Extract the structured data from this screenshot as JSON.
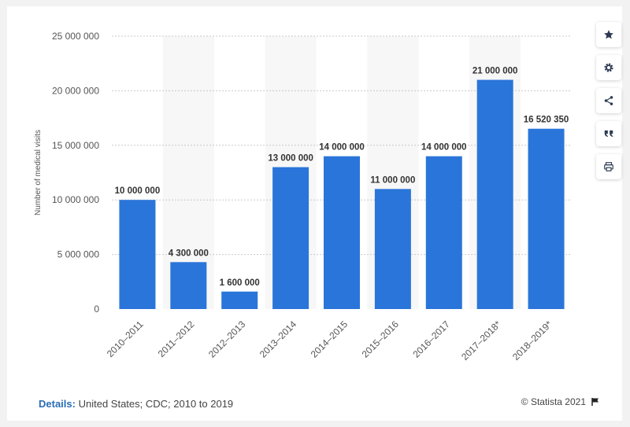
{
  "chart_data": {
    "type": "bar",
    "categories": [
      "2010–2011",
      "2011–2012",
      "2012–2013",
      "2013–2014",
      "2014–2015",
      "2015–2016",
      "2016–2017",
      "2017–2018*",
      "2018–2019*"
    ],
    "values": [
      10000000,
      4300000,
      1600000,
      13000000,
      14000000,
      11000000,
      14000000,
      21000000,
      16520350
    ],
    "value_labels": [
      "10 000 000",
      "4 300 000",
      "1 600 000",
      "13 000 000",
      "14 000 000",
      "11 000 000",
      "14 000 000",
      "21 000 000",
      "16 520 350"
    ],
    "ylabel": "Number of medical visits",
    "ylim": [
      0,
      25000000
    ],
    "yticks": [
      0,
      5000000,
      10000000,
      15000000,
      20000000,
      25000000
    ],
    "ytick_labels": [
      "0",
      "5 000 000",
      "10 000 000",
      "15 000 000",
      "20 000 000",
      "25 000 000"
    ],
    "bar_color": "#2a75d9",
    "grid": true
  },
  "footer": {
    "details_label": "Details:",
    "details_text": "United States; CDC; 2010 to 2019",
    "credit": "© Statista 2021"
  },
  "sidebar_icons": [
    "star-icon",
    "gear-icon",
    "share-icon",
    "quote-icon",
    "print-icon"
  ]
}
